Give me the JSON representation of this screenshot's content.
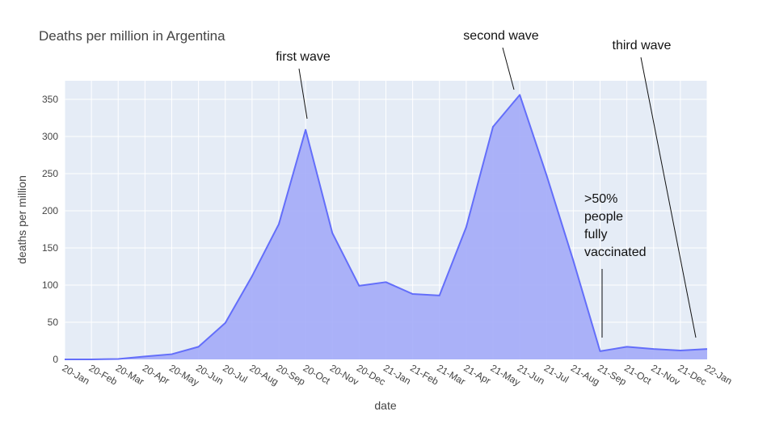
{
  "chart_data": {
    "type": "area",
    "title": "Deaths per million in Argentina",
    "xlabel": "date",
    "ylabel": "deaths per million",
    "ylim": [
      0,
      375
    ],
    "yticks": [
      0,
      50,
      100,
      150,
      200,
      250,
      300,
      350
    ],
    "grid": true,
    "colors": {
      "fill": "#a3abf8",
      "line": "#636efa",
      "plot_bg": "#e5ecf6",
      "grid": "#ffffff"
    },
    "x_ticks": [
      "20-Jan",
      "20-Feb",
      "20-Mar",
      "20-Apr",
      "20-May",
      "20-Jun",
      "20-Jul",
      "20-Aug",
      "20-Sep",
      "20-Oct",
      "20-Nov",
      "20-Dec",
      "21-Jan",
      "21-Feb",
      "21-Mar",
      "21-Apr",
      "21-May",
      "21-Jun",
      "21-Jul",
      "21-Aug",
      "21-Sep",
      "21-Oct",
      "21-Nov",
      "21-Dec",
      "22-Jan"
    ],
    "series": [
      {
        "points": [
          {
            "x": "20-Jan",
            "y": 0
          },
          {
            "x": "20-Feb",
            "y": 0
          },
          {
            "x": "20-Mar",
            "y": 0.5
          },
          {
            "x": "20-Apr",
            "y": 4
          },
          {
            "x": "20-May",
            "y": 7
          },
          {
            "x": "20-Jun",
            "y": 17
          },
          {
            "x": "20-Jul",
            "y": 49
          },
          {
            "x": "20-Aug",
            "y": 112
          },
          {
            "x": "20-Sep",
            "y": 182
          },
          {
            "x": "20-Oct",
            "y": 309
          },
          {
            "x": "20-Nov",
            "y": 170
          },
          {
            "x": "20-Dec",
            "y": 99
          },
          {
            "x": "21-Jan",
            "y": 104
          },
          {
            "x": "21-Feb",
            "y": 88
          },
          {
            "x": "21-Mar",
            "y": 86
          },
          {
            "x": "21-Apr",
            "y": 178
          },
          {
            "x": "21-May",
            "y": 313
          },
          {
            "x": "21-Jun",
            "y": 356
          },
          {
            "x": "21-Jul",
            "y": 248
          },
          {
            "x": "21-Aug",
            "y": 133
          },
          {
            "x": "21-Sep",
            "y": 11
          },
          {
            "x": "21-Oct",
            "y": 17
          },
          {
            "x": "21-Nov",
            "y": 14
          },
          {
            "x": "21-Dec",
            "y": 12
          },
          {
            "x": "22-Jan",
            "y": 14
          }
        ]
      }
    ],
    "annotations": [
      {
        "id": "first-wave",
        "lines": [
          "first wave"
        ],
        "x": "20-Oct",
        "y": 320
      },
      {
        "id": "second-wave",
        "lines": [
          "second wave"
        ],
        "x": "21-Jun",
        "y": 360
      },
      {
        "id": "vaccinated",
        "lines": [
          ">50%",
          "people",
          "fully",
          "vaccinated"
        ],
        "x": "21-Sep",
        "y": 28
      },
      {
        "id": "third-wave",
        "lines": [
          "third wave"
        ],
        "x": "21-Dec",
        "y": 28
      }
    ]
  }
}
